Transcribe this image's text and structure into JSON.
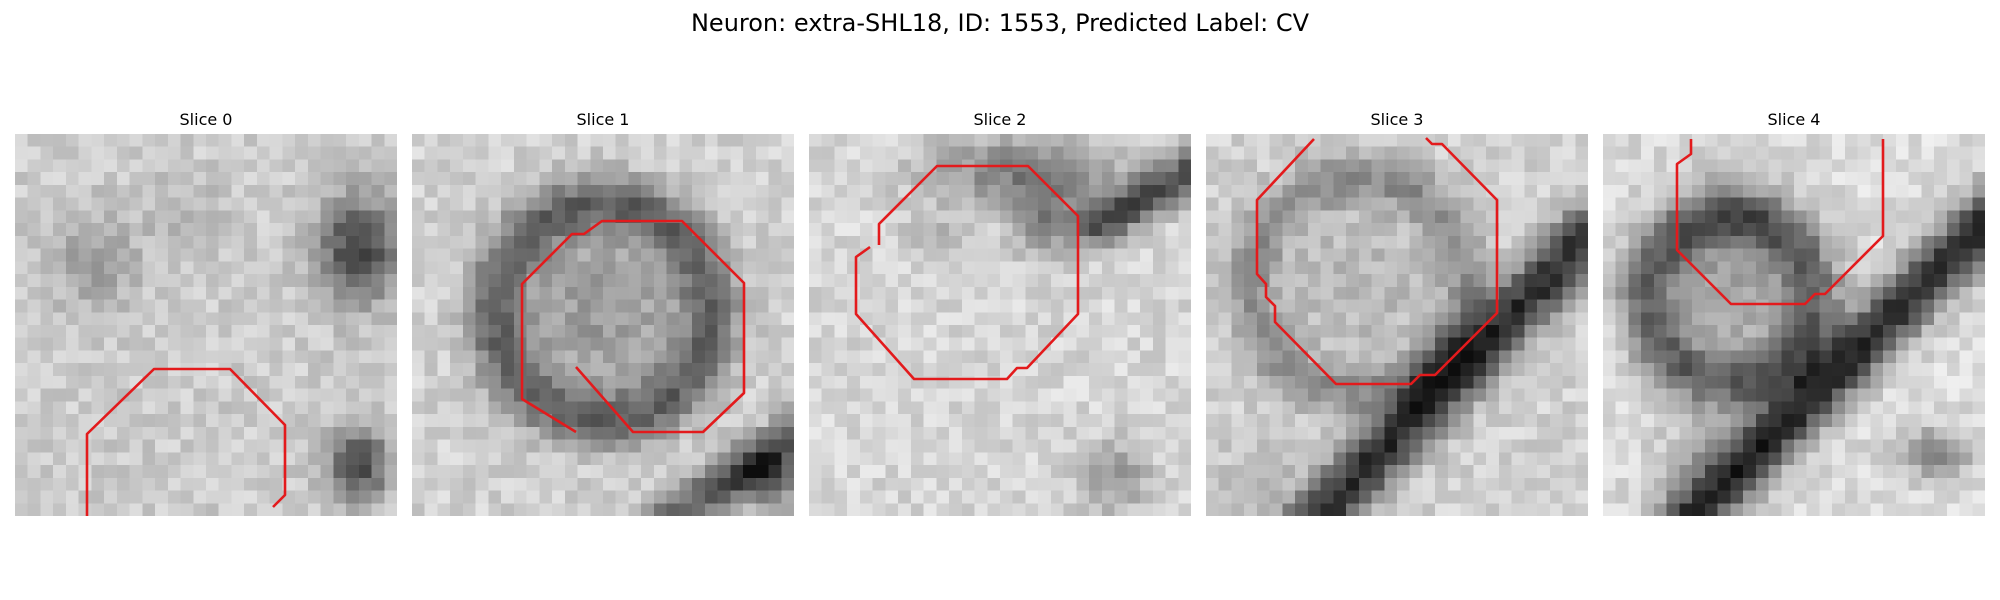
{
  "figure": {
    "title": "Neuron: extra-SHL18, ID: 1553, Predicted Label: CV"
  },
  "colors": {
    "contour": "#e31a1c",
    "background": "#ffffff"
  },
  "panels": [
    {
      "title": "Slice 0"
    },
    {
      "title": "Slice 1"
    },
    {
      "title": "Slice 2"
    },
    {
      "title": "Slice 3"
    },
    {
      "title": "Slice 4"
    }
  ]
}
